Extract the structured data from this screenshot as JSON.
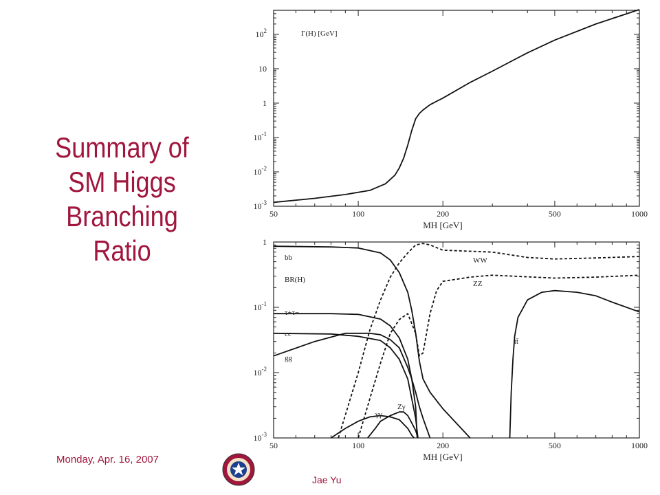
{
  "slide": {
    "title_lines": [
      "Summary of",
      "SM Higgs",
      "Branching",
      "Ratio"
    ],
    "date": "Monday, Apr. 16, 2007",
    "author": "Jae Yu",
    "accent_color": "#a0163c",
    "logo_icon": "university-seal-icon"
  },
  "chart_data": [
    {
      "type": "line",
      "panel_label": "Γ(H) [GeV]",
      "xlabel": "MH [GeV]",
      "x_scale": "log",
      "y_scale": "log",
      "xlim": [
        50,
        1000
      ],
      "ylim": [
        0.001,
        500
      ],
      "x_ticks": [
        50,
        100,
        200,
        500,
        1000
      ],
      "x_tick_labels": [
        "50",
        "100",
        "200",
        "500",
        "1000"
      ],
      "y_ticks": [
        0.001,
        0.01,
        0.1,
        1,
        10,
        100
      ],
      "y_tick_labels": [
        {
          "base": "10",
          "exp": "-3"
        },
        {
          "base": "10",
          "exp": "-2"
        },
        {
          "base": "10",
          "exp": "-1"
        },
        {
          "base": "1",
          "exp": ""
        },
        {
          "base": "10",
          "exp": ""
        },
        {
          "base": "10",
          "exp": "2"
        }
      ],
      "series": [
        {
          "name": "Γ(H)",
          "style": "solid",
          "x": [
            50,
            70,
            90,
            110,
            125,
            135,
            140,
            145,
            150,
            155,
            160,
            165,
            170,
            180,
            200,
            250,
            300,
            400,
            500,
            700,
            1000
          ],
          "y": [
            0.0013,
            0.0017,
            0.0022,
            0.0029,
            0.0045,
            0.008,
            0.013,
            0.025,
            0.06,
            0.16,
            0.35,
            0.5,
            0.63,
            0.9,
            1.4,
            4,
            8.5,
            29,
            68,
            200,
            560
          ]
        }
      ]
    },
    {
      "type": "line",
      "panel_label": "BR(H)",
      "xlabel": "MH [GeV]",
      "x_scale": "log",
      "y_scale": "log",
      "xlim": [
        50,
        1000
      ],
      "ylim": [
        0.001,
        1
      ],
      "x_ticks": [
        50,
        100,
        200,
        500,
        1000
      ],
      "x_tick_labels": [
        "50",
        "100",
        "200",
        "500",
        "1000"
      ],
      "y_ticks": [
        0.001,
        0.01,
        0.1,
        1
      ],
      "y_tick_labels": [
        {
          "base": "10",
          "exp": "-3"
        },
        {
          "base": "10",
          "exp": "-2"
        },
        {
          "base": "10",
          "exp": "-1"
        },
        {
          "base": "1",
          "exp": ""
        }
      ],
      "series": [
        {
          "name": "bb",
          "style": "solid",
          "x": [
            50,
            80,
            100,
            120,
            130,
            140,
            150,
            155,
            160,
            165,
            170,
            180,
            200,
            250
          ],
          "y": [
            0.86,
            0.84,
            0.81,
            0.68,
            0.53,
            0.34,
            0.17,
            0.09,
            0.04,
            0.015,
            0.008,
            0.005,
            0.0028,
            0.001
          ]
        },
        {
          "name": "τ+τ−",
          "style": "solid",
          "x": [
            50,
            80,
            100,
            120,
            130,
            140,
            150,
            155,
            160,
            162
          ],
          "y": [
            0.08,
            0.08,
            0.078,
            0.066,
            0.052,
            0.034,
            0.016,
            0.008,
            0.003,
            0.001
          ]
        },
        {
          "name": "cc",
          "style": "solid",
          "x": [
            50,
            80,
            100,
            120,
            130,
            140,
            150,
            155,
            160,
            163
          ],
          "y": [
            0.04,
            0.039,
            0.036,
            0.031,
            0.024,
            0.016,
            0.008,
            0.004,
            0.002,
            0.001
          ]
        },
        {
          "name": "gg",
          "style": "solid",
          "x": [
            50,
            70,
            90,
            110,
            120,
            130,
            140,
            150,
            155,
            160,
            165,
            170,
            180
          ],
          "y": [
            0.018,
            0.03,
            0.04,
            0.04,
            0.038,
            0.032,
            0.024,
            0.012,
            0.008,
            0.005,
            0.003,
            0.002,
            0.001
          ]
        },
        {
          "name": "WW",
          "style": "dashed",
          "x": [
            85,
            100,
            110,
            120,
            130,
            140,
            150,
            160,
            170,
            180,
            200,
            300,
            400,
            500,
            700,
            1000
          ],
          "y": [
            0.001,
            0.01,
            0.045,
            0.13,
            0.29,
            0.48,
            0.68,
            0.9,
            0.95,
            0.9,
            0.75,
            0.7,
            0.58,
            0.55,
            0.57,
            0.6
          ]
        },
        {
          "name": "ZZ",
          "style": "dashed",
          "x": [
            100,
            110,
            120,
            130,
            140,
            150,
            160,
            165,
            170,
            180,
            190,
            200,
            250,
            300,
            500,
            700,
            1000
          ],
          "y": [
            0.001,
            0.004,
            0.014,
            0.04,
            0.065,
            0.08,
            0.04,
            0.018,
            0.02,
            0.08,
            0.18,
            0.25,
            0.29,
            0.31,
            0.28,
            0.29,
            0.31
          ]
        },
        {
          "name": "γγ",
          "style": "solid",
          "x": [
            80,
            90,
            100,
            110,
            120,
            130,
            140,
            150,
            155,
            158
          ],
          "y": [
            0.001,
            0.0014,
            0.0018,
            0.0021,
            0.0022,
            0.0021,
            0.0019,
            0.0014,
            0.0011,
            0.001
          ]
        },
        {
          "name": "Zγ",
          "style": "solid",
          "x": [
            108,
            115,
            120,
            130,
            140,
            145,
            150,
            155,
            160,
            163
          ],
          "y": [
            0.001,
            0.0014,
            0.0018,
            0.0022,
            0.0025,
            0.0025,
            0.0022,
            0.0017,
            0.0013,
            0.001
          ]
        },
        {
          "name": "tt̄",
          "style": "solid",
          "x": [
            346,
            350,
            355,
            360,
            370,
            400,
            450,
            500,
            600,
            700,
            800,
            1000
          ],
          "y": [
            0.001,
            0.005,
            0.016,
            0.036,
            0.07,
            0.13,
            0.17,
            0.18,
            0.17,
            0.15,
            0.12,
            0.085
          ]
        }
      ],
      "labels": [
        {
          "text": "bb",
          "series": "bb"
        },
        {
          "text": "τ+τ−",
          "series": "τ+τ−"
        },
        {
          "text": "cc",
          "series": "cc"
        },
        {
          "text": "gg",
          "series": "gg"
        },
        {
          "text": "WW",
          "series": "WW"
        },
        {
          "text": "ZZ",
          "series": "ZZ"
        },
        {
          "text": "γγ",
          "series": "γγ"
        },
        {
          "text": "Zγ",
          "series": "Zγ"
        },
        {
          "text": "tt̄",
          "series": "tt̄"
        }
      ]
    }
  ]
}
